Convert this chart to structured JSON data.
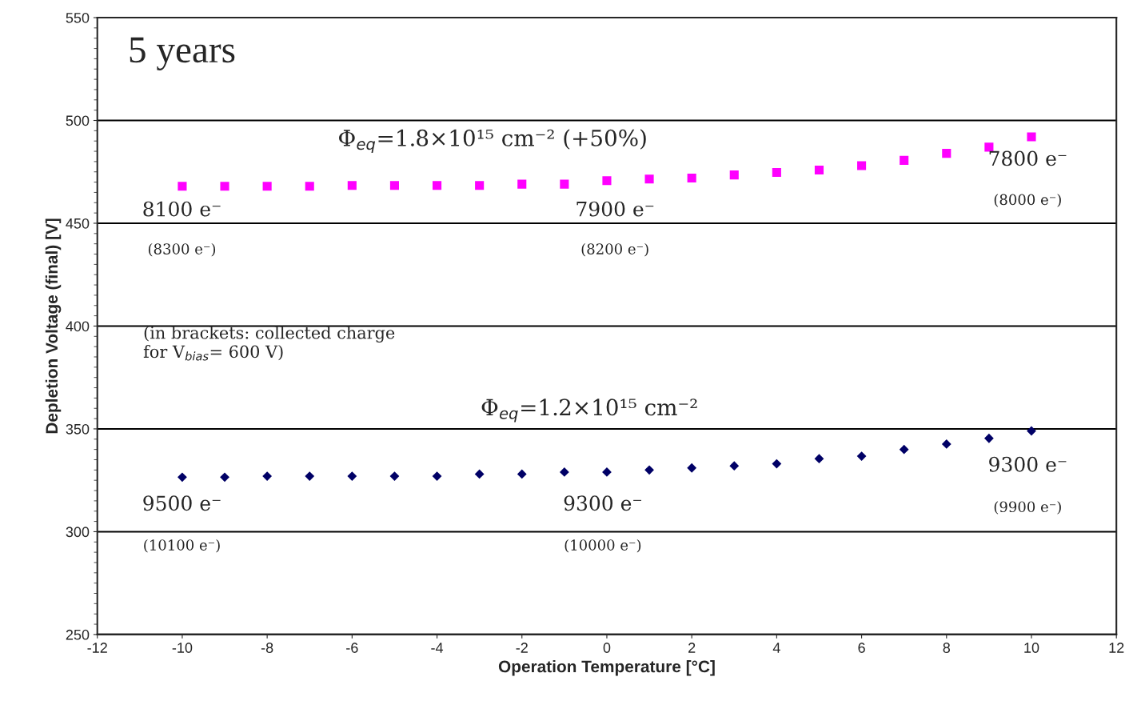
{
  "chart_data": {
    "type": "scatter",
    "title": "5 years",
    "xlabel": "Operation Temperature [°C]",
    "ylabel": "Depletion Voltage (final) [V]",
    "x": [
      -10,
      -9,
      -8,
      -7,
      -6,
      -5,
      -4,
      -3,
      -2,
      -1,
      0,
      1,
      2,
      3,
      4,
      5,
      6,
      7,
      8,
      9,
      10
    ],
    "series": [
      {
        "color": "#ff00ff",
        "marker": "square",
        "values": [
          468,
          468,
          468,
          468,
          468.4,
          468.4,
          468.4,
          468.4,
          469,
          469,
          470.7,
          471.5,
          472,
          473.5,
          474.7,
          475.9,
          478,
          480.6,
          484,
          487,
          492
        ]
      },
      {
        "color": "#000066",
        "marker": "diamond",
        "values": [
          326.5,
          326.5,
          327,
          327,
          327,
          327,
          327,
          328,
          328,
          329,
          329,
          330,
          331,
          332,
          333,
          335.5,
          336.7,
          340,
          342.6,
          345.4,
          349
        ]
      }
    ],
    "xlim": [
      -12,
      12
    ],
    "xticks": [
      -12,
      -10,
      -8,
      -6,
      -4,
      -2,
      0,
      2,
      4,
      6,
      8,
      10,
      12
    ],
    "ylim": [
      250,
      550
    ],
    "yticks": [
      250,
      300,
      350,
      400,
      450,
      500,
      550
    ],
    "grid": "y",
    "annotations": [
      "Φ$_{eq}$=1.8×10¹⁵ cm⁻² (+50%)",
      "Φ$_{eq}$=1.2×10¹⁵ cm⁻²",
      "8100 e⁻",
      "(8300 e⁻)",
      "7900 e⁻",
      "(8200 e⁻)",
      "7800 e⁻",
      "(8000 e⁻)",
      "9500 e⁻",
      "(10100 e⁻)",
      "9300 e⁻",
      "(10000 e⁻)",
      "9300 e⁻",
      "(9900 e⁻)",
      "(in brackets: collected charge\nfor V$_{bias}$= 600 V)"
    ]
  }
}
